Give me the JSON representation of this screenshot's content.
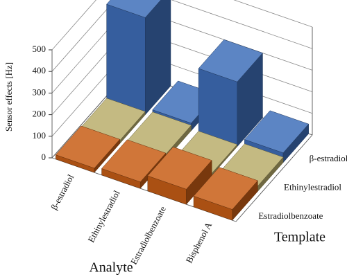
{
  "chart_data": {
    "type": "bar3d",
    "y_label": "Sensor effects [Hz]",
    "x_label": "Analyte",
    "z_label": "Template",
    "categories": [
      "β-estradiol",
      "Ethinylestradiol",
      "Estradiolbenzoate",
      "Bisphenol A"
    ],
    "series": [
      {
        "name": "β-estradiol",
        "color": "#3f6fba",
        "values": [
          450,
          35,
          300,
          45
        ]
      },
      {
        "name": "Ethinylestradiol",
        "color": "#b9ae6c",
        "values": [
          15,
          25,
          10,
          25
        ]
      },
      {
        "name": "Estradiolbenzoate",
        "color": "#c85e16",
        "values": [
          20,
          30,
          70,
          50
        ]
      }
    ],
    "ylim": [
      0,
      500
    ],
    "yticks": [
      0,
      100,
      200,
      300,
      400,
      500
    ],
    "grid": true
  }
}
